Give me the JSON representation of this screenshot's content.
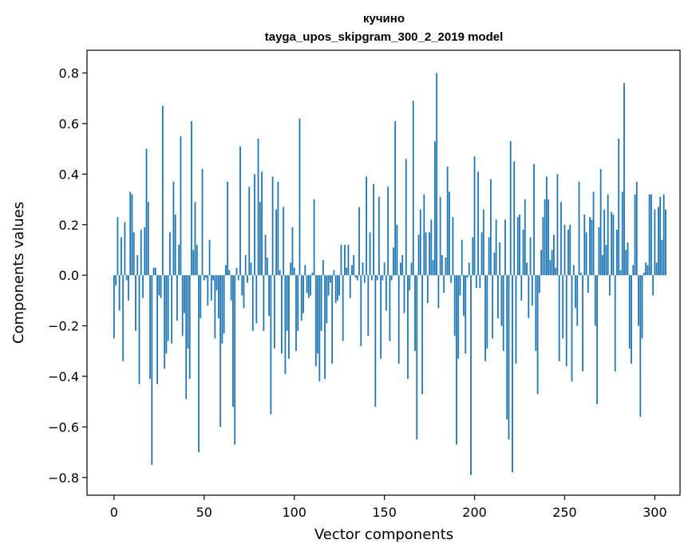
{
  "chart_data": {
    "type": "bar",
    "title_line1": "кучино",
    "title_line2": "tayga_upos_skipgram_300_2_2019 model",
    "xlabel": "Vector components",
    "ylabel": "Components values",
    "xlim": [
      -15,
      314
    ],
    "ylim": [
      -0.87,
      0.89
    ],
    "xticks": [
      0,
      50,
      100,
      150,
      200,
      250,
      300
    ],
    "xtick_labels": [
      "0",
      "50",
      "100",
      "150",
      "200",
      "250",
      "300"
    ],
    "yticks": [
      -0.8,
      -0.6,
      -0.4,
      -0.2,
      0.0,
      0.2,
      0.4,
      0.6,
      0.8
    ],
    "ytick_labels": [
      "−0.8",
      "−0.6",
      "−0.4",
      "−0.2",
      "0.0",
      "0.2",
      "0.4",
      "0.6",
      "0.8"
    ],
    "bar_color": "#1f77b4",
    "grid": false,
    "values": [
      -0.25,
      -0.04,
      0.23,
      -0.14,
      0.15,
      -0.34,
      0.21,
      -0.02,
      -0.1,
      0.33,
      0.32,
      0.17,
      -0.22,
      0.08,
      -0.43,
      0.18,
      -0.09,
      0.19,
      0.5,
      0.29,
      -0.41,
      -0.75,
      0.03,
      0.03,
      -0.43,
      -0.08,
      -0.09,
      0.67,
      -0.37,
      -0.31,
      -0.26,
      0.17,
      -0.27,
      0.37,
      0.24,
      -0.18,
      0.12,
      0.55,
      -0.24,
      -0.15,
      -0.49,
      -0.29,
      -0.41,
      0.61,
      0.1,
      0.29,
      0.12,
      -0.7,
      -0.17,
      0.42,
      -0.02,
      -0.01,
      -0.12,
      0.14,
      -0.1,
      -0.02,
      -0.25,
      -0.06,
      -0.17,
      -0.6,
      -0.27,
      -0.23,
      0.04,
      0.37,
      0.02,
      -0.1,
      -0.52,
      -0.67,
      0.03,
      -0.02,
      0.51,
      -0.08,
      -0.13,
      0.08,
      -0.03,
      0.35,
      0.05,
      -0.22,
      0.4,
      -0.19,
      0.54,
      0.29,
      0.41,
      -0.22,
      0.16,
      0.07,
      -0.16,
      -0.55,
      0.39,
      -0.29,
      0.26,
      0.37,
      0.02,
      -0.31,
      0.27,
      -0.39,
      -0.22,
      -0.33,
      0.05,
      0.19,
      0.03,
      -0.3,
      -0.22,
      0.62,
      -0.18,
      -0.15,
      0.04,
      -0.07,
      -0.09,
      -0.08,
      0.01,
      0.3,
      -0.36,
      -0.31,
      -0.42,
      -0.22,
      0.06,
      -0.41,
      -0.19,
      -0.08,
      -0.03,
      -0.35,
      0.02,
      -0.11,
      -0.1,
      -0.08,
      0.12,
      -0.26,
      0.12,
      0.03,
      0.12,
      -0.09,
      0.04,
      0.08,
      -0.01,
      -0.02,
      0.27,
      -0.28,
      0.05,
      -0.03,
      0.39,
      -0.24,
      0.17,
      -0.02,
      0.36,
      -0.52,
      -0.02,
      0.31,
      -0.33,
      -0.02,
      0.05,
      -0.14,
      0.35,
      -0.26,
      -0.02,
      0.11,
      0.61,
      0.2,
      -0.35,
      0.05,
      0.08,
      -0.15,
      0.46,
      -0.41,
      -0.06,
      0.05,
      0.69,
      -0.3,
      -0.65,
      0.16,
      0.26,
      -0.47,
      0.32,
      0.17,
      -0.11,
      0.17,
      0.22,
      0.06,
      0.53,
      0.8,
      -0.13,
      0.31,
      0.08,
      -0.07,
      0.07,
      0.43,
      0.33,
      -0.03,
      0.23,
      -0.24,
      -0.67,
      -0.33,
      -0.08,
      0.14,
      -0.16,
      -0.31,
      -0.01,
      0.05,
      -0.79,
      0.15,
      0.47,
      -0.05,
      0.41,
      -0.05,
      0.17,
      0.26,
      -0.34,
      -0.29,
      0.15,
      0.38,
      -0.25,
      0.09,
      0.22,
      -0.17,
      0.13,
      -0.2,
      -0.3,
      0.22,
      -0.57,
      -0.65,
      0.53,
      -0.78,
      0.45,
      -0.35,
      0.23,
      0.24,
      -0.1,
      0.18,
      0.3,
      0.05,
      -0.17,
      0.15,
      -0.12,
      0.44,
      -0.3,
      -0.47,
      -0.07,
      0.1,
      0.23,
      0.3,
      0.39,
      0.3,
      0.06,
      0.1,
      0.16,
      0.03,
      0.4,
      -0.34,
      0.29,
      -0.25,
      0.2,
      -0.36,
      0.18,
      0.2,
      -0.42,
      0.04,
      -0.13,
      -0.2,
      0.37,
      0.01,
      -0.38,
      0.24,
      0.17,
      -0.07,
      0.23,
      0.22,
      0.33,
      -0.2,
      -0.51,
      0.19,
      0.42,
      0.08,
      0.26,
      0.12,
      0.32,
      -0.08,
      0.25,
      0.24,
      -0.38,
      0.18,
      0.54,
      0.02,
      0.33,
      0.76,
      0.1,
      0.13,
      -0.29,
      -0.35,
      0.04,
      0.32,
      0.37,
      -0.2,
      -0.56,
      -0.25,
      0.01,
      0.05,
      0.04,
      0.32,
      0.32,
      -0.08,
      0.26,
      0.05,
      0.27,
      0.31,
      0.14,
      0.32,
      0.26
    ]
  }
}
